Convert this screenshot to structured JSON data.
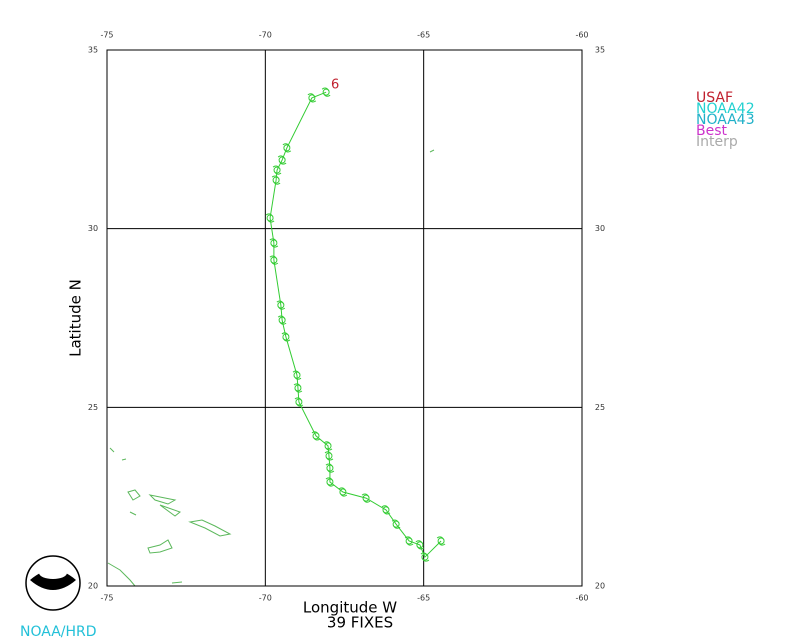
{
  "chart_data": {
    "type": "line",
    "xlabel": "Longitude W",
    "ylabel": "Latitude N",
    "subtitle": "39 FIXES",
    "footer": "NOAA/HRD",
    "annotation": "6",
    "xlim": [
      -75,
      -60
    ],
    "ylim": [
      20,
      35
    ],
    "xticks": [
      -75,
      -70,
      -65,
      -60
    ],
    "yticks": [
      20,
      25,
      30,
      35
    ],
    "grid": true,
    "legend": [
      {
        "name": "USAF",
        "color": "#c0202e"
      },
      {
        "name": "NOAA42",
        "color": "#22d0d0"
      },
      {
        "name": "NOAA43",
        "color": "#20b0c8"
      },
      {
        "name": "Best",
        "color": "#cc33cc"
      },
      {
        "name": "Interp",
        "color": "#aaaaaa"
      }
    ],
    "series": [
      {
        "color": "#33cc33",
        "x": [
          -68.08,
          -68.53,
          -69.32,
          -69.47,
          -69.63,
          -69.66,
          -69.85,
          -69.73,
          -69.73,
          -69.51,
          -69.47,
          -69.35,
          -69.0,
          -68.97,
          -68.94,
          -68.4,
          -68.02,
          -67.99,
          -67.96,
          -67.96,
          -67.55,
          -66.82,
          -66.19,
          -65.87,
          -65.46,
          -65.12,
          -64.96,
          -64.45
        ],
        "values": [
          33.82,
          33.66,
          32.26,
          31.92,
          31.64,
          31.36,
          30.3,
          29.6,
          29.12,
          27.86,
          27.44,
          26.97,
          25.9,
          25.54,
          25.15,
          24.2,
          23.92,
          23.64,
          23.3,
          22.91,
          22.63,
          22.46,
          22.13,
          21.73,
          21.26,
          21.15,
          20.81,
          21.26
        ]
      }
    ]
  }
}
